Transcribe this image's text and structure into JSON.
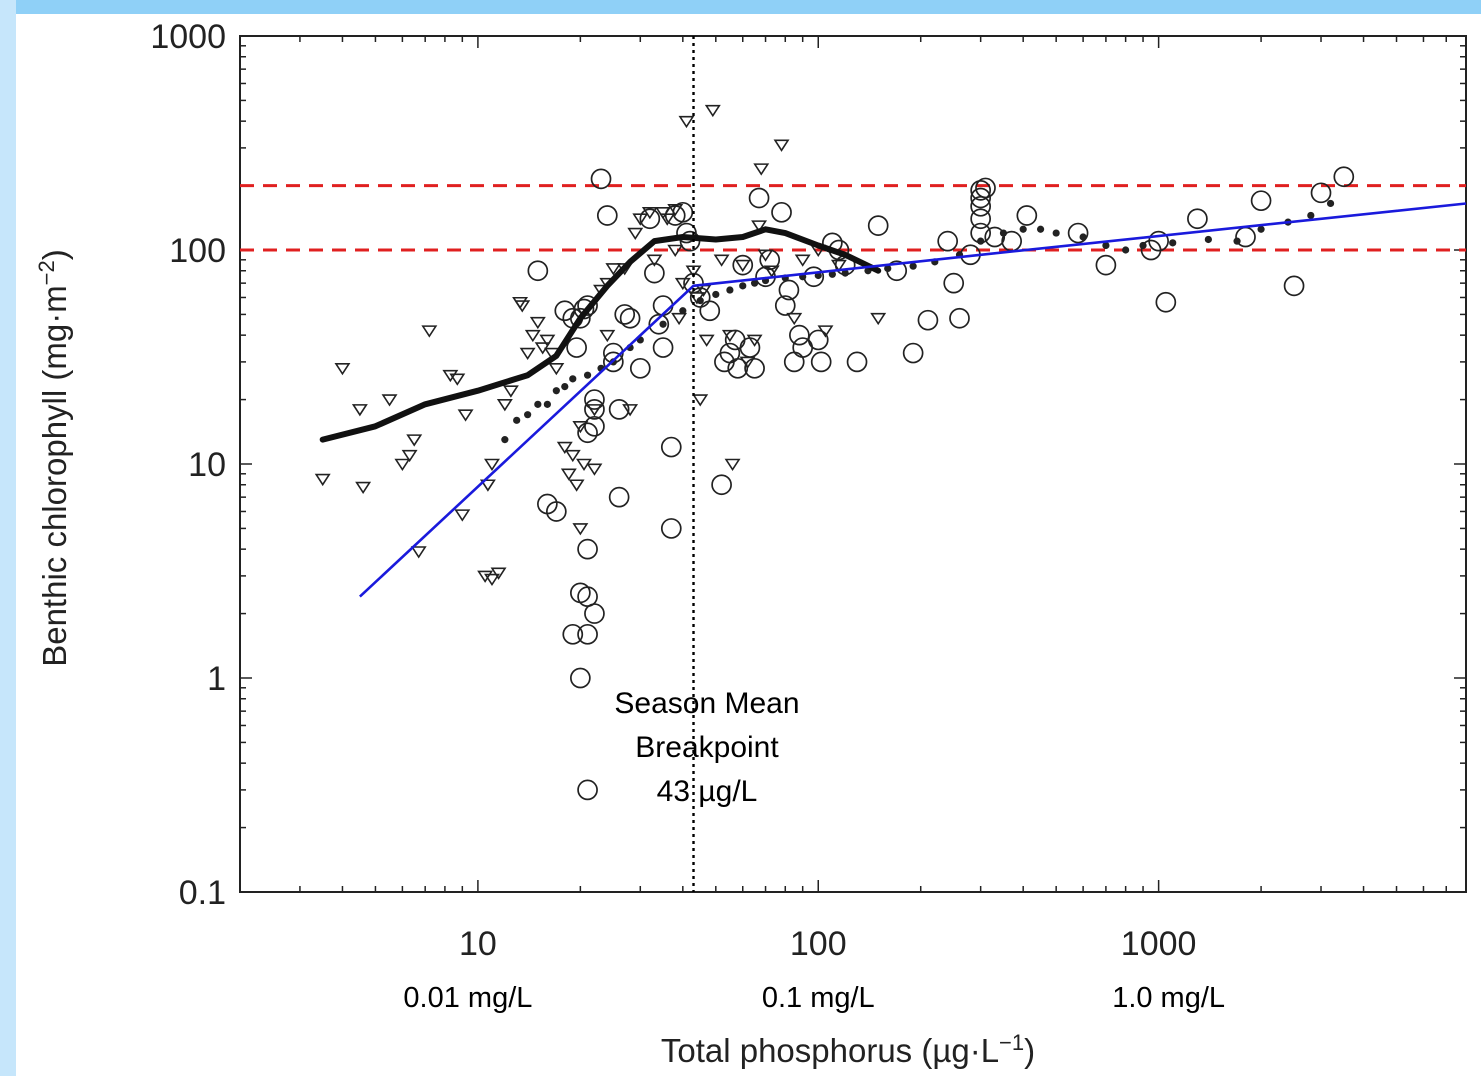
{
  "chart_data": {
    "type": "scatter",
    "title": "",
    "xlabel": "Total phosphorus (µg·L",
    "xlabel_sup": "−1",
    "xlabel_end": ")",
    "ylabel": "Benthic chlorophyll (mg·m",
    "ylabel_sup": "−2",
    "ylabel_end": ")",
    "x_scale": "log",
    "y_scale": "log",
    "xlim": [
      2,
      8000
    ],
    "ylim": [
      0.1,
      1000
    ],
    "x_ticks": [
      10,
      100,
      1000
    ],
    "x_tick_labels": [
      "10",
      "100",
      "1000"
    ],
    "x_tick_sublabels": [
      "0.01 mg/L",
      "0.1 mg/L",
      "1.0 mg/L"
    ],
    "y_ticks": [
      0.1,
      1,
      10,
      100,
      1000
    ],
    "y_tick_labels": [
      "0.1",
      "1",
      "10",
      "100",
      "1000"
    ],
    "grid": false,
    "annotation": {
      "lines": [
        "Season Mean",
        "Breakpoint",
        "43 µg/L"
      ],
      "x": 43
    },
    "breakpoint_x": 43,
    "reference_lines": [
      {
        "y": 200,
        "color": "#e02020",
        "style": "dashed"
      },
      {
        "y": 100,
        "color": "#e02020",
        "style": "dashed"
      }
    ],
    "colors": {
      "fit": "#1a1adc",
      "reference": "#e02020",
      "points": "#222222",
      "border": "#7fc4f2"
    },
    "series": [
      {
        "marker": "triangle-down",
        "points": [
          [
            3.5,
            8.5
          ],
          [
            4,
            28
          ],
          [
            4.5,
            18
          ],
          [
            4.6,
            7.8
          ],
          [
            5.5,
            20
          ],
          [
            6,
            10
          ],
          [
            6.3,
            11
          ],
          [
            6.5,
            13
          ],
          [
            6.7,
            3.9
          ],
          [
            7.2,
            42
          ],
          [
            8.3,
            26
          ],
          [
            8.7,
            25
          ],
          [
            9,
            5.8
          ],
          [
            9.2,
            17
          ],
          [
            10.5,
            3
          ],
          [
            11,
            2.9
          ],
          [
            11.5,
            3.1
          ],
          [
            10.7,
            8
          ],
          [
            11,
            10
          ],
          [
            12,
            19
          ],
          [
            12.5,
            22
          ],
          [
            13.3,
            57
          ],
          [
            13.5,
            55
          ],
          [
            14,
            33
          ],
          [
            14.5,
            40
          ],
          [
            15,
            46
          ],
          [
            15.5,
            35
          ],
          [
            16,
            38
          ],
          [
            16.5,
            33
          ],
          [
            17,
            28
          ],
          [
            18,
            12
          ],
          [
            18.5,
            9
          ],
          [
            19,
            11
          ],
          [
            19.5,
            8
          ],
          [
            20,
            5
          ],
          [
            20.5,
            10
          ],
          [
            20,
            15
          ],
          [
            22,
            9.5
          ],
          [
            22,
            18
          ],
          [
            24,
            40
          ],
          [
            23,
            65
          ],
          [
            24,
            70
          ],
          [
            25,
            82
          ],
          [
            27,
            82
          ],
          [
            28,
            18
          ],
          [
            29,
            120
          ],
          [
            30,
            140
          ],
          [
            32,
            150
          ],
          [
            33,
            90
          ],
          [
            35,
            150
          ],
          [
            36,
            140
          ],
          [
            38,
            155
          ],
          [
            38,
            100
          ],
          [
            39,
            48
          ],
          [
            40,
            70
          ],
          [
            41,
            400
          ],
          [
            43,
            80
          ],
          [
            44,
            60
          ],
          [
            45,
            20
          ],
          [
            46,
            65
          ],
          [
            47,
            38
          ],
          [
            49,
            450
          ],
          [
            52,
            90
          ],
          [
            55,
            40
          ],
          [
            56,
            10
          ],
          [
            60,
            85
          ],
          [
            62,
            30
          ],
          [
            65,
            38
          ],
          [
            67,
            130
          ],
          [
            68,
            240
          ],
          [
            70,
            95
          ],
          [
            73,
            80
          ],
          [
            78,
            310
          ],
          [
            85,
            48
          ],
          [
            90,
            90
          ],
          [
            100,
            100
          ],
          [
            105,
            42
          ],
          [
            115,
            85
          ],
          [
            150,
            48
          ]
        ]
      },
      {
        "marker": "circle-open",
        "points": [
          [
            15,
            80
          ],
          [
            16,
            6.5
          ],
          [
            17,
            6
          ],
          [
            18,
            52
          ],
          [
            19,
            48
          ],
          [
            19.5,
            35
          ],
          [
            20,
            48
          ],
          [
            20.5,
            53
          ],
          [
            21,
            55
          ],
          [
            19,
            1.6
          ],
          [
            20,
            2.5
          ],
          [
            21,
            2.4
          ],
          [
            21,
            1.6
          ],
          [
            20,
            1
          ],
          [
            21,
            0.3
          ],
          [
            21,
            4
          ],
          [
            22,
            2
          ],
          [
            22,
            15
          ],
          [
            22,
            18
          ],
          [
            22,
            20
          ],
          [
            21,
            14
          ],
          [
            23,
            215
          ],
          [
            24,
            145
          ],
          [
            25,
            33
          ],
          [
            25,
            30
          ],
          [
            26,
            18
          ],
          [
            26,
            7
          ],
          [
            27,
            50
          ],
          [
            28,
            48
          ],
          [
            30,
            28
          ],
          [
            32,
            140
          ],
          [
            33,
            78
          ],
          [
            34,
            45
          ],
          [
            35,
            35
          ],
          [
            35,
            55
          ],
          [
            37,
            12
          ],
          [
            37,
            5
          ],
          [
            38,
            145
          ],
          [
            40,
            150
          ],
          [
            41,
            120
          ],
          [
            42,
            110
          ],
          [
            43,
            70
          ],
          [
            45,
            60
          ],
          [
            48,
            52
          ],
          [
            52,
            8
          ],
          [
            53,
            30
          ],
          [
            55,
            33
          ],
          [
            57,
            38
          ],
          [
            58,
            28
          ],
          [
            60,
            85
          ],
          [
            63,
            35
          ],
          [
            65,
            28
          ],
          [
            67,
            175
          ],
          [
            70,
            75
          ],
          [
            72,
            90
          ],
          [
            78,
            150
          ],
          [
            80,
            55
          ],
          [
            82,
            65
          ],
          [
            85,
            30
          ],
          [
            88,
            40
          ],
          [
            90,
            35
          ],
          [
            97,
            75
          ],
          [
            100,
            38
          ],
          [
            102,
            30
          ],
          [
            110,
            108
          ],
          [
            115,
            100
          ],
          [
            120,
            85
          ],
          [
            130,
            30
          ],
          [
            150,
            130
          ],
          [
            170,
            80
          ],
          [
            190,
            33
          ],
          [
            210,
            47
          ],
          [
            240,
            110
          ],
          [
            250,
            70
          ],
          [
            260,
            48
          ],
          [
            280,
            95
          ],
          [
            300,
            120
          ],
          [
            300,
            140
          ],
          [
            300,
            160
          ],
          [
            300,
            175
          ],
          [
            300,
            190
          ],
          [
            310,
            195
          ],
          [
            330,
            115
          ],
          [
            370,
            110
          ],
          [
            410,
            145
          ],
          [
            580,
            120
          ],
          [
            700,
            85
          ],
          [
            950,
            100
          ],
          [
            1000,
            110
          ],
          [
            1050,
            57
          ],
          [
            1300,
            140
          ],
          [
            1800,
            115
          ],
          [
            2000,
            170
          ],
          [
            2500,
            68
          ],
          [
            3000,
            185
          ],
          [
            3500,
            220
          ]
        ]
      },
      {
        "marker": "dot",
        "points": [
          [
            12,
            13
          ],
          [
            13,
            16
          ],
          [
            14,
            17
          ],
          [
            15,
            19
          ],
          [
            16,
            19
          ],
          [
            17,
            22
          ],
          [
            18,
            23
          ],
          [
            19,
            25
          ],
          [
            21,
            26
          ],
          [
            23,
            28
          ],
          [
            25,
            30
          ],
          [
            28,
            35
          ],
          [
            30,
            38
          ],
          [
            35,
            45
          ],
          [
            40,
            52
          ],
          [
            45,
            58
          ],
          [
            50,
            62
          ],
          [
            55,
            65
          ],
          [
            60,
            68
          ],
          [
            65,
            70
          ],
          [
            70,
            72
          ],
          [
            80,
            74
          ],
          [
            90,
            75
          ],
          [
            100,
            76
          ],
          [
            110,
            77
          ],
          [
            120,
            78
          ],
          [
            140,
            80
          ],
          [
            160,
            82
          ],
          [
            190,
            84
          ],
          [
            220,
            88
          ],
          [
            260,
            95
          ],
          [
            300,
            110
          ],
          [
            350,
            120
          ],
          [
            400,
            125
          ],
          [
            450,
            125
          ],
          [
            500,
            120
          ],
          [
            600,
            115
          ],
          [
            700,
            105
          ],
          [
            800,
            100
          ],
          [
            900,
            105
          ],
          [
            1100,
            108
          ],
          [
            1400,
            112
          ],
          [
            1700,
            110
          ],
          [
            2000,
            125
          ],
          [
            2400,
            135
          ],
          [
            2800,
            145
          ],
          [
            3200,
            165
          ]
        ]
      }
    ],
    "smooth_curve": [
      [
        3.5,
        13
      ],
      [
        5,
        15
      ],
      [
        7,
        19
      ],
      [
        10,
        22
      ],
      [
        14,
        26
      ],
      [
        17,
        32
      ],
      [
        20,
        48
      ],
      [
        24,
        68
      ],
      [
        28,
        88
      ],
      [
        33,
        110
      ],
      [
        40,
        115
      ],
      [
        50,
        112
      ],
      [
        60,
        115
      ],
      [
        70,
        125
      ],
      [
        80,
        120
      ],
      [
        100,
        105
      ],
      [
        120,
        95
      ],
      [
        150,
        80
      ]
    ],
    "fit_line": [
      [
        4.5,
        2.4
      ],
      [
        43,
        68
      ],
      [
        300,
        95
      ],
      [
        8000,
        165
      ]
    ]
  }
}
